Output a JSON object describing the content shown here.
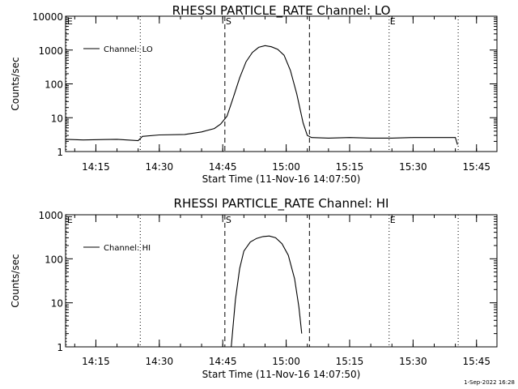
{
  "footer": {
    "timestamp": "1-Sep-2022 16:28"
  },
  "chart_data": [
    {
      "type": "line",
      "title": "RHESSI PARTICLE_RATE Channel: LO",
      "xlabel": "Start Time (11-Nov-16 14:07:50)",
      "ylabel": "Counts/sec",
      "yscale": "log",
      "xlim": [
        "14:07:50",
        "15:49:50"
      ],
      "ylim": [
        1,
        10000
      ],
      "xtick_labels": [
        "14:15",
        "14:30",
        "14:45",
        "15:00",
        "15:15",
        "15:30",
        "15:45"
      ],
      "ytick_labels": [
        "1",
        "10",
        "100",
        "1000",
        "10000"
      ],
      "legend": {
        "entries": [
          "Channel: LO"
        ],
        "position": "top-left"
      },
      "markers": {
        "dotted": [
          "14:08:00",
          "14:25:30",
          "15:24:20",
          "15:40:40"
        ],
        "dashed": [
          "14:45:30",
          "15:05:30"
        ],
        "labels": [
          {
            "text": "E",
            "at": "14:08:00"
          },
          {
            "text": "S",
            "at": "14:45:30"
          },
          {
            "text": "E",
            "at": "15:24:20"
          }
        ]
      },
      "series": [
        {
          "x": [
            "14:07:50",
            "14:12:00",
            "14:20:00",
            "14:25:00",
            "14:26:00",
            "14:30:00",
            "14:36:00",
            "14:40:00",
            "14:43:00",
            "14:44:30",
            "14:46:00",
            "14:47:30",
            "14:49:00",
            "14:50:30",
            "14:52:00",
            "14:53:30",
            "14:55:00",
            "14:56:30",
            "14:58:00",
            "14:59:30",
            "15:01:00",
            "15:02:30",
            "15:04:00",
            "15:05:00",
            "15:06:00",
            "15:10:00",
            "15:15:00",
            "15:20:00",
            "15:25:00",
            "15:30:00",
            "15:35:00",
            "15:40:00",
            "15:40:30"
          ],
          "y": [
            2.3,
            2.2,
            2.3,
            2.1,
            2.8,
            3.1,
            3.2,
            3.8,
            4.8,
            6.5,
            11,
            40,
            150,
            450,
            850,
            1200,
            1350,
            1250,
            1050,
            700,
            250,
            50,
            7,
            3,
            2.6,
            2.5,
            2.6,
            2.5,
            2.5,
            2.6,
            2.6,
            2.6,
            1.6
          ]
        }
      ]
    },
    {
      "type": "line",
      "title": "RHESSI PARTICLE_RATE Channel: HI",
      "xlabel": "Start Time (11-Nov-16 14:07:50)",
      "ylabel": "Counts/sec",
      "yscale": "log",
      "xlim": [
        "14:07:50",
        "15:49:50"
      ],
      "ylim": [
        1,
        1000
      ],
      "xtick_labels": [
        "14:15",
        "14:30",
        "14:45",
        "15:00",
        "15:15",
        "15:30",
        "15:45"
      ],
      "ytick_labels": [
        "1",
        "10",
        "100",
        "1000"
      ],
      "legend": {
        "entries": [
          "Channel: HI"
        ],
        "position": "top-left"
      },
      "markers": {
        "dotted": [
          "14:08:00",
          "14:25:30",
          "15:24:20",
          "15:40:40"
        ],
        "dashed": [
          "14:45:30",
          "15:05:30"
        ],
        "labels": [
          {
            "text": "E",
            "at": "14:08:00"
          },
          {
            "text": "S",
            "at": "14:45:30"
          },
          {
            "text": "E",
            "at": "15:24:20"
          }
        ]
      },
      "series": [
        {
          "x": [
            "14:47:00",
            "14:48:00",
            "14:49:00",
            "14:50:00",
            "14:51:30",
            "14:53:00",
            "14:54:30",
            "14:56:00",
            "14:57:30",
            "14:59:00",
            "15:00:30",
            "15:02:00",
            "15:03:00",
            "15:03:40"
          ],
          "y": [
            1,
            12,
            60,
            150,
            240,
            290,
            320,
            330,
            300,
            220,
            120,
            35,
            8,
            2
          ]
        }
      ]
    }
  ]
}
